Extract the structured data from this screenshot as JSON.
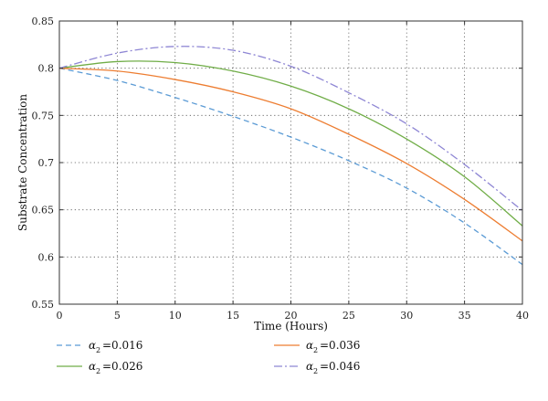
{
  "chart_data": {
    "type": "line",
    "xlabel": "Time (Hours)",
    "ylabel": "Substrate Concentration",
    "xlim": [
      0,
      40
    ],
    "ylim": [
      0.55,
      0.85
    ],
    "xticks": [
      0,
      5,
      10,
      15,
      20,
      25,
      30,
      35,
      40
    ],
    "yticks": [
      0.55,
      0.6,
      0.65,
      0.7,
      0.75,
      0.8,
      0.85
    ],
    "xtick_labels": [
      "0",
      "5",
      "10",
      "15",
      "20",
      "25",
      "30",
      "35",
      "40"
    ],
    "ytick_labels": [
      "0.55",
      "0.6",
      "0.65",
      "0.7",
      "0.75",
      "0.8",
      "0.85"
    ],
    "grid": true,
    "legend_position": "bottom",
    "x": [
      0,
      5,
      10,
      15,
      20,
      25,
      30,
      35,
      40
    ],
    "series": [
      {
        "name": "α2 =0.016",
        "legend_symbol": "α",
        "legend_subscript": "2",
        "legend_value": "=0.016",
        "color": "#5b9bd5",
        "dash": "dashed",
        "values": [
          0.8,
          0.787,
          0.769,
          0.749,
          0.727,
          0.702,
          0.673,
          0.636,
          0.592
        ]
      },
      {
        "name": "α2 =0.026",
        "legend_symbol": "α",
        "legend_subscript": "2",
        "legend_value": "=0.026",
        "color": "#70ad47",
        "dash": "solid",
        "values": [
          0.8,
          0.807,
          0.806,
          0.797,
          0.781,
          0.757,
          0.725,
          0.685,
          0.633
        ]
      },
      {
        "name": "α2 =0.036",
        "legend_symbol": "α",
        "legend_subscript": "2",
        "legend_value": "=0.036",
        "color": "#ed7d31",
        "dash": "solid",
        "values": [
          0.8,
          0.797,
          0.788,
          0.775,
          0.757,
          0.73,
          0.699,
          0.661,
          0.617
        ]
      },
      {
        "name": "α2 =0.046",
        "legend_symbol": "α",
        "legend_subscript": "2",
        "legend_value": "=0.046",
        "color": "#8e86d4",
        "dash": "dashdot",
        "values": [
          0.8,
          0.816,
          0.823,
          0.819,
          0.802,
          0.774,
          0.741,
          0.698,
          0.649
        ]
      }
    ]
  }
}
